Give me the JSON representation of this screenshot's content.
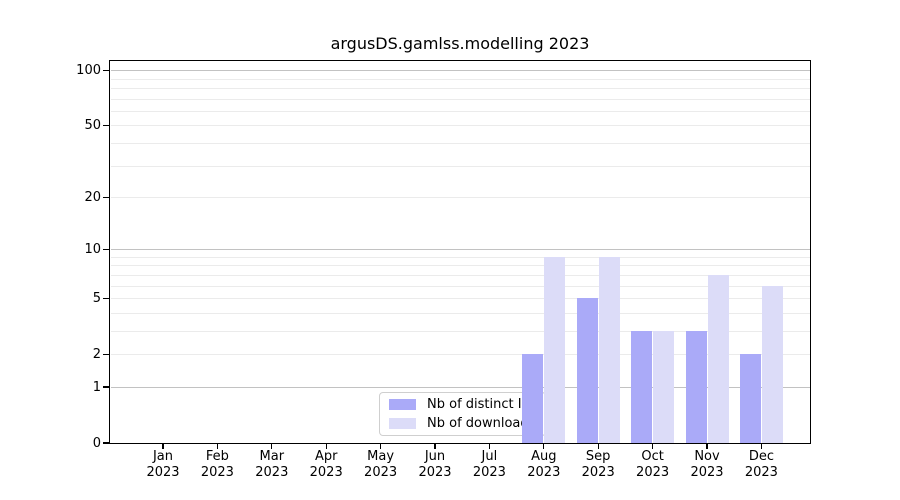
{
  "title": "argusDS.gamlss.modelling 2023",
  "colors": {
    "distinct_ips": "#aaaaf8",
    "downloads": "#dcdcf8",
    "grid_major": "#c2c2c2",
    "grid_minor": "#ebebeb",
    "axis": "#000000",
    "legend_border": "#cfcfcf"
  },
  "legend": {
    "items": [
      {
        "key": "distinct_ips",
        "label": "Nb of distinct IPs"
      },
      {
        "key": "downloads",
        "label": "Nb of downloads"
      }
    ]
  },
  "chart_data": {
    "type": "bar",
    "title": "argusDS.gamlss.modelling 2023",
    "categories": [
      "Jan",
      "Feb",
      "Mar",
      "Apr",
      "May",
      "Jun",
      "Jul",
      "Aug",
      "Sep",
      "Oct",
      "Nov",
      "Dec"
    ],
    "category_year": "2023",
    "series": [
      {
        "name": "Nb of distinct IPs",
        "color_key": "distinct_ips",
        "values": [
          0,
          0,
          0,
          0,
          0,
          0,
          0,
          2,
          5,
          3,
          3,
          2
        ]
      },
      {
        "name": "Nb of downloads",
        "color_key": "downloads",
        "values": [
          0,
          0,
          0,
          0,
          0,
          0,
          0,
          9,
          9,
          3,
          7,
          6
        ]
      }
    ],
    "y_scale": "log1p",
    "ylim": [
      0,
      113
    ],
    "y_ticks": [
      100,
      50,
      20,
      10,
      5,
      2,
      1,
      0
    ],
    "y_major_grid": [
      1,
      10,
      100
    ],
    "y_minor_grid": [
      2,
      3,
      4,
      5,
      6,
      7,
      8,
      9,
      20,
      30,
      40,
      50,
      60,
      70,
      80,
      90
    ],
    "grid": "horizontal",
    "legend_position": "lower-center"
  }
}
